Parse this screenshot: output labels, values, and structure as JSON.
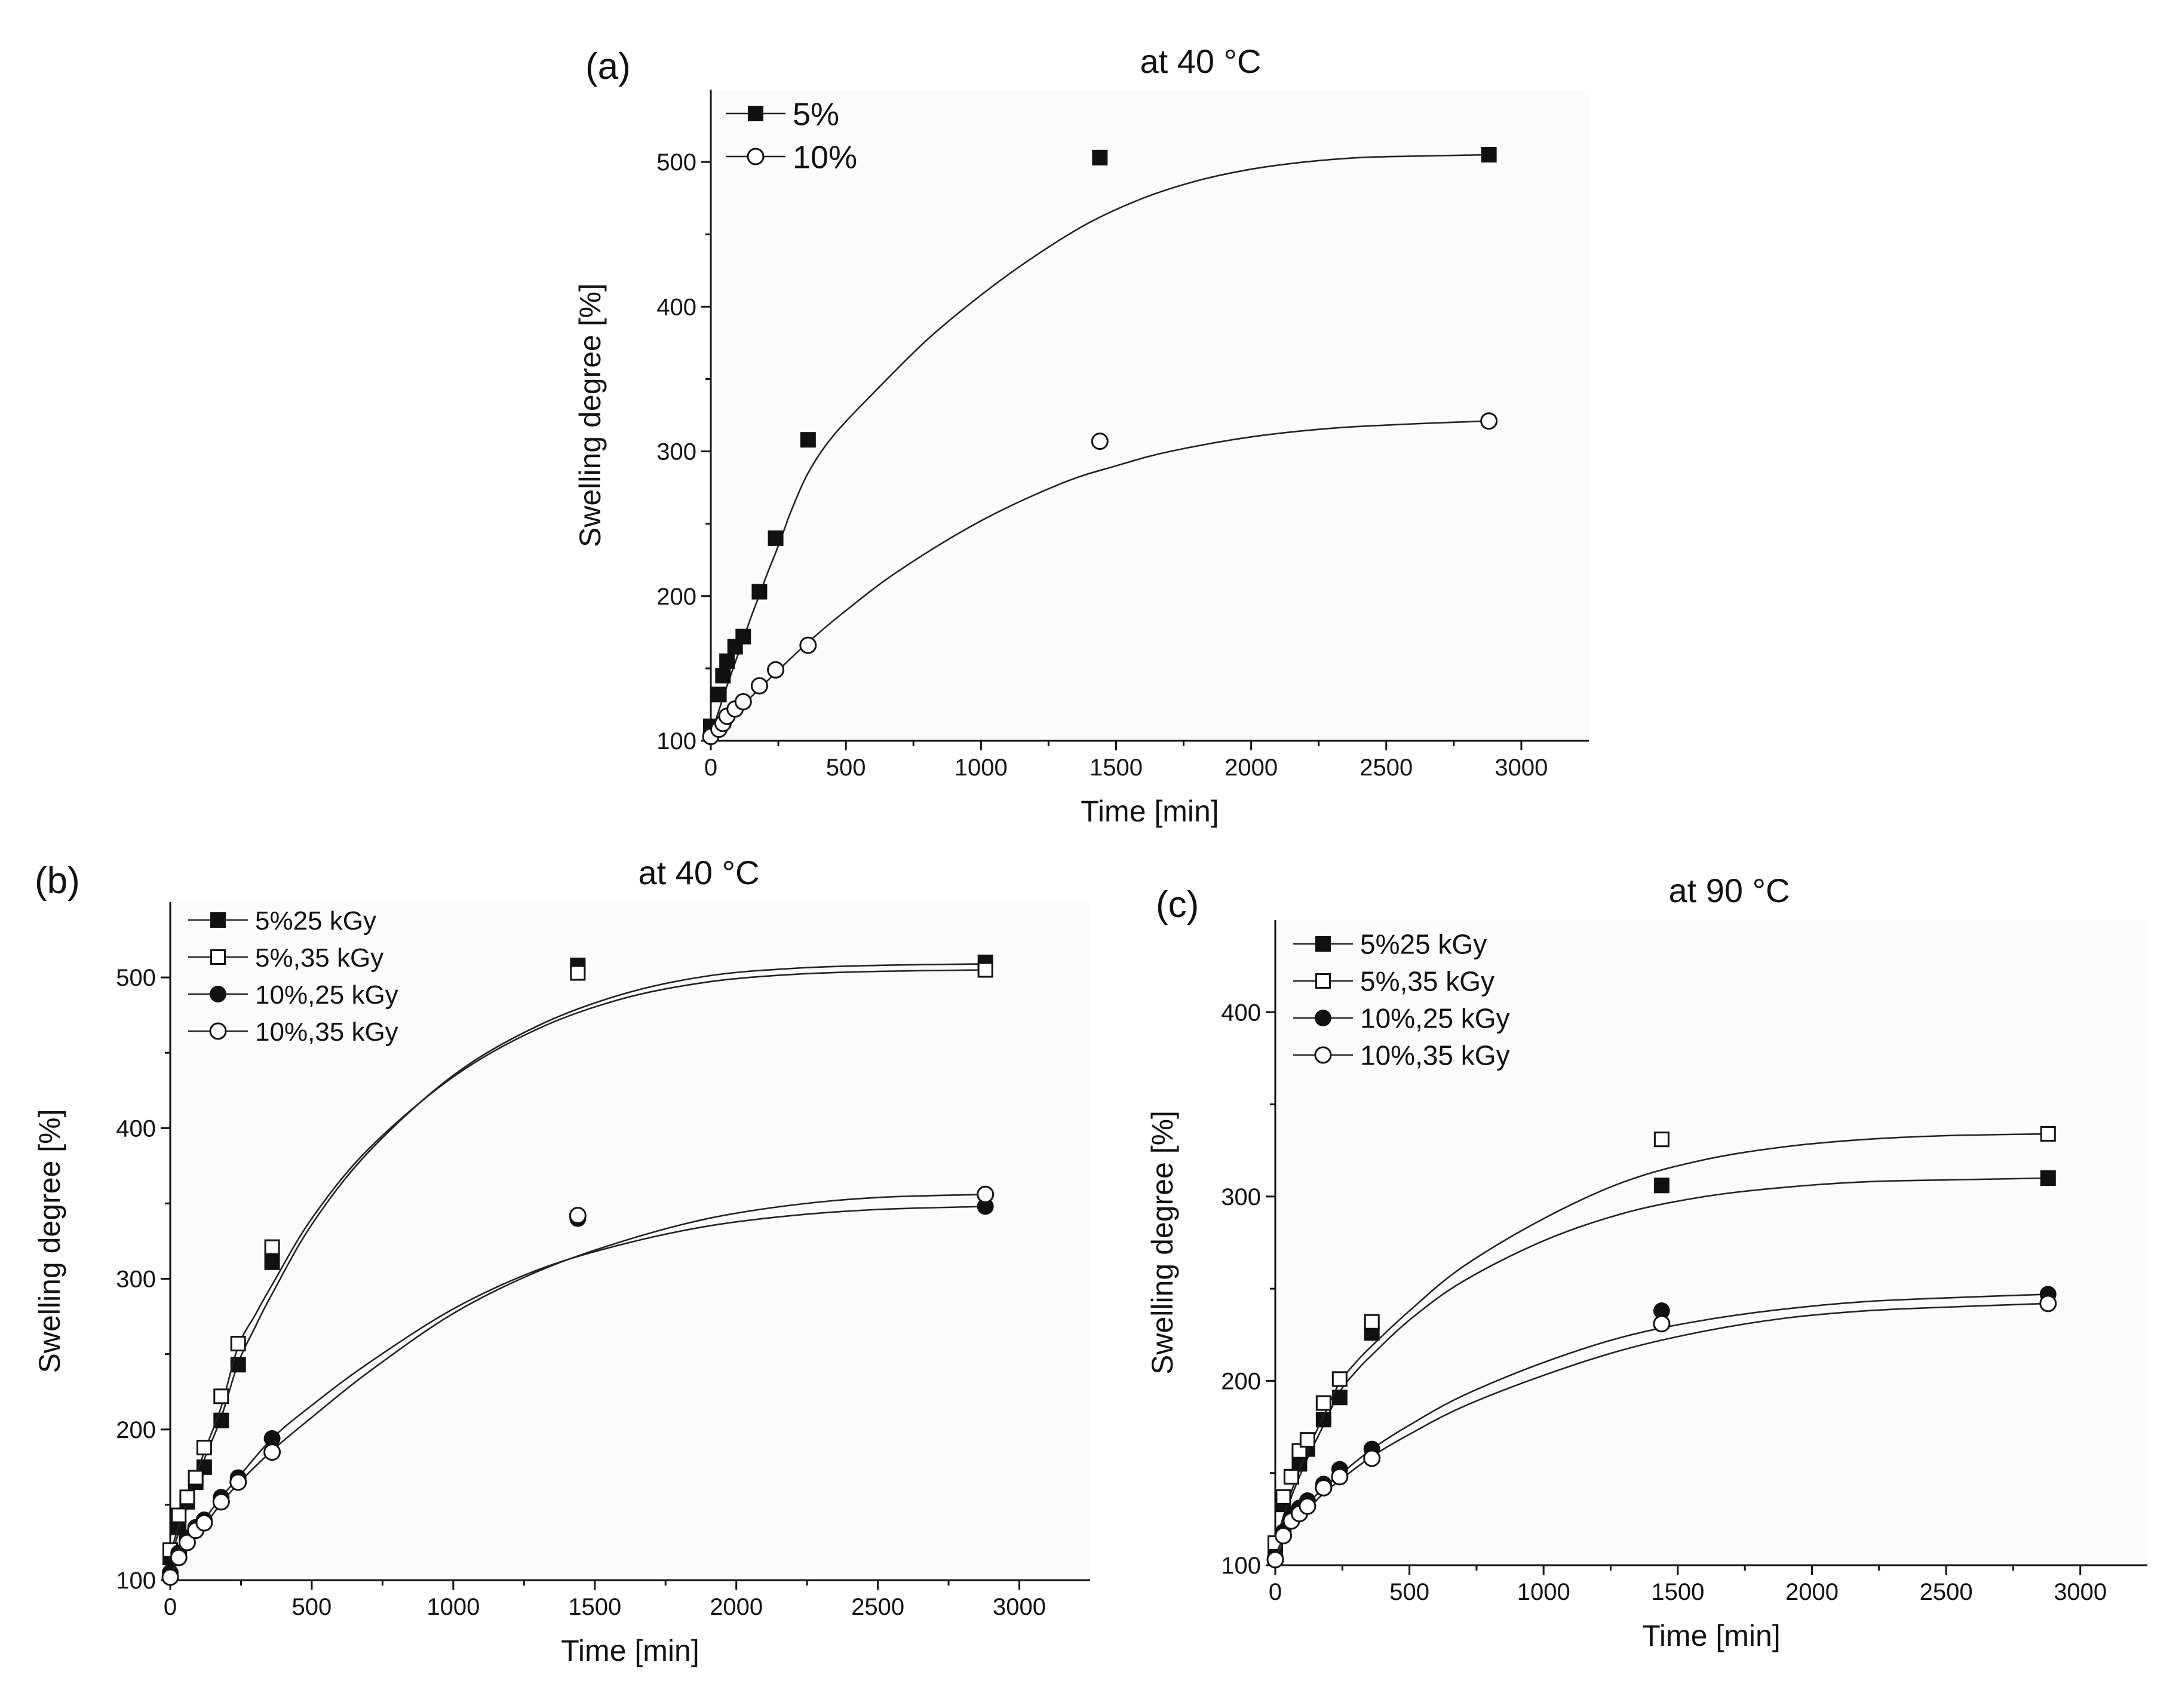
{
  "chart_data": [
    {
      "id": "a",
      "type": "scatter",
      "panel_label": "(a)",
      "title": "at 40 °C",
      "xlabel": "Time [min]",
      "ylabel": "Swelling degree [%]",
      "xlim": [
        0,
        3250
      ],
      "ylim": [
        100,
        550
      ],
      "xticks": [
        0,
        500,
        1000,
        1500,
        2000,
        2500,
        3000
      ],
      "yticks": [
        100,
        200,
        300,
        400,
        500
      ],
      "legend_position": "top-left",
      "series": [
        {
          "name": "5%",
          "marker": "filled-square",
          "x": [
            0,
            30,
            45,
            60,
            90,
            120,
            180,
            240,
            360,
            1440,
            2880
          ],
          "y": [
            110,
            132,
            145,
            155,
            165,
            172,
            203,
            240,
            308,
            503,
            505
          ],
          "fit_x": [
            0,
            30,
            60,
            90,
            120,
            150,
            180,
            210,
            240,
            270,
            300,
            360,
            450,
            600,
            800,
            1000,
            1200,
            1400,
            1600,
            1800,
            2000,
            2200,
            2400,
            2600,
            2880
          ],
          "fit_y": [
            104,
            121,
            138,
            154,
            170,
            186,
            201,
            216,
            230,
            245,
            260,
            285,
            310,
            340,
            377,
            408,
            435,
            458,
            475,
            487,
            495,
            500,
            503,
            504,
            505
          ]
        },
        {
          "name": "10%",
          "marker": "open-circle",
          "x": [
            0,
            30,
            45,
            60,
            90,
            120,
            180,
            240,
            360,
            1440,
            2880
          ],
          "y": [
            103,
            108,
            112,
            117,
            122,
            127,
            138,
            149,
            166,
            307,
            321
          ],
          "fit_x": [
            0,
            30,
            60,
            90,
            120,
            180,
            240,
            360,
            500,
            700,
            1000,
            1300,
            1500,
            1700,
            2000,
            2300,
            2600,
            2880
          ],
          "fit_y": [
            103,
            109,
            115,
            120,
            125,
            136,
            147,
            168,
            190,
            218,
            252,
            278,
            290,
            300,
            310,
            316,
            319,
            321
          ]
        }
      ]
    },
    {
      "id": "b",
      "type": "scatter",
      "panel_label": "(b)",
      "title": "at 40 °C",
      "xlabel": "Time [min]",
      "ylabel": "Swelling degree [%]",
      "xlim": [
        0,
        3250
      ],
      "ylim": [
        100,
        550
      ],
      "xticks": [
        0,
        500,
        1000,
        1500,
        2000,
        2500,
        3000
      ],
      "yticks": [
        100,
        200,
        300,
        400,
        500
      ],
      "legend_position": "top-left",
      "series": [
        {
          "name": "5%25 kGy",
          "marker": "filled-square",
          "x": [
            0,
            30,
            60,
            90,
            120,
            180,
            240,
            360,
            1440,
            2880
          ],
          "y": [
            115,
            135,
            152,
            165,
            175,
            206,
            243,
            311,
            508,
            510
          ],
          "fit_x": [
            0,
            60,
            120,
            180,
            240,
            300,
            360,
            500,
            700,
            1000,
            1300,
            1600,
            1900,
            2200,
            2500,
            2880
          ],
          "fit_y": [
            114,
            149,
            180,
            208,
            244,
            268,
            290,
            336,
            384,
            435,
            468,
            489,
            501,
            506,
            508,
            509
          ]
        },
        {
          "name": "5%,35 kGy",
          "marker": "open-square",
          "x": [
            0,
            30,
            60,
            90,
            120,
            180,
            240,
            360,
            1440,
            2880
          ],
          "y": [
            120,
            143,
            155,
            168,
            188,
            222,
            257,
            321,
            503,
            505
          ],
          "fit_x": [
            0,
            60,
            120,
            180,
            240,
            300,
            360,
            500,
            700,
            1000,
            1300,
            1600,
            1900,
            2200,
            2500,
            2880
          ],
          "fit_y": [
            118,
            153,
            185,
            215,
            255,
            276,
            296,
            340,
            386,
            434,
            466,
            486,
            497,
            502,
            504,
            505
          ]
        },
        {
          "name": "10%,25 kGy",
          "marker": "filled-circle",
          "x": [
            0,
            30,
            60,
            90,
            120,
            180,
            240,
            360,
            1440,
            2880
          ],
          "y": [
            105,
            118,
            128,
            135,
            140,
            155,
            168,
            194,
            340,
            348
          ],
          "fit_x": [
            0,
            60,
            120,
            180,
            240,
            360,
            500,
            700,
            1000,
            1300,
            1600,
            1900,
            2200,
            2500,
            2880
          ],
          "fit_y": [
            106,
            125,
            140,
            155,
            168,
            194,
            216,
            244,
            280,
            306,
            323,
            335,
            342,
            346,
            348
          ]
        },
        {
          "name": "10%,35 kGy",
          "marker": "open-circle",
          "x": [
            0,
            30,
            60,
            90,
            120,
            180,
            240,
            360,
            1440,
            2880
          ],
          "y": [
            102,
            115,
            125,
            133,
            138,
            152,
            165,
            185,
            342,
            356
          ],
          "fit_x": [
            0,
            60,
            120,
            180,
            240,
            360,
            500,
            700,
            1000,
            1300,
            1600,
            1900,
            2200,
            2500,
            2880
          ],
          "fit_y": [
            104,
            122,
            136,
            151,
            164,
            186,
            208,
            238,
            277,
            305,
            325,
            340,
            349,
            354,
            356
          ]
        }
      ]
    },
    {
      "id": "c",
      "type": "scatter",
      "panel_label": "(c)",
      "title": "at 90 °C",
      "xlabel": "Time [min]",
      "ylabel": "Swelling degree [%]",
      "xlim": [
        0,
        3250
      ],
      "ylim": [
        100,
        450
      ],
      "xticks": [
        0,
        500,
        1000,
        1500,
        2000,
        2500,
        3000
      ],
      "yticks": [
        100,
        200,
        300,
        400
      ],
      "legend_position": "top-left",
      "series": [
        {
          "name": "5%25 kGy",
          "marker": "filled-square",
          "x": [
            0,
            30,
            60,
            90,
            120,
            180,
            240,
            360,
            1440,
            2880
          ],
          "y": [
            110,
            133,
            148,
            155,
            163,
            179,
            191,
            226,
            306,
            310
          ],
          "fit_x": [
            0,
            60,
            120,
            180,
            240,
            300,
            360,
            500,
            700,
            1000,
            1300,
            1600,
            1900,
            2200,
            2500,
            2880
          ],
          "fit_y": [
            110,
            137,
            158,
            176,
            194,
            205,
            214,
            233,
            254,
            276,
            291,
            300,
            305,
            308,
            309,
            310
          ]
        },
        {
          "name": "5%,35 kGy",
          "marker": "open-square",
          "x": [
            0,
            30,
            60,
            90,
            120,
            180,
            240,
            360,
            1440,
            2880
          ],
          "y": [
            112,
            137,
            148,
            162,
            168,
            188,
            201,
            232,
            331,
            334
          ],
          "fit_x": [
            0,
            60,
            120,
            180,
            240,
            300,
            360,
            500,
            700,
            1000,
            1300,
            1600,
            1900,
            2200,
            2500,
            2880
          ],
          "fit_y": [
            112,
            140,
            162,
            181,
            199,
            210,
            219,
            238,
            262,
            288,
            308,
            320,
            327,
            331,
            333,
            334
          ]
        },
        {
          "name": "10%,25 kGy",
          "marker": "filled-circle",
          "x": [
            0,
            30,
            60,
            90,
            120,
            180,
            240,
            360,
            1440,
            2880
          ],
          "y": [
            104,
            118,
            126,
            131,
            135,
            144,
            152,
            163,
            238,
            247
          ],
          "fit_x": [
            0,
            60,
            120,
            180,
            240,
            360,
            500,
            700,
            1000,
            1300,
            1600,
            1900,
            2200,
            2500,
            2880
          ],
          "fit_y": [
            106,
            122,
            133,
            142,
            149,
            163,
            176,
            192,
            210,
            224,
            233,
            239,
            243,
            245,
            247
          ]
        },
        {
          "name": "10%,35 kGy",
          "marker": "open-circle",
          "x": [
            0,
            30,
            60,
            90,
            120,
            180,
            240,
            360,
            1440,
            2880
          ],
          "y": [
            103,
            116,
            124,
            128,
            132,
            142,
            148,
            158,
            231,
            242
          ],
          "fit_x": [
            0,
            60,
            120,
            180,
            240,
            360,
            500,
            700,
            1000,
            1300,
            1600,
            1900,
            2200,
            2500,
            2880
          ],
          "fit_y": [
            104,
            120,
            130,
            139,
            146,
            159,
            171,
            186,
            203,
            217,
            227,
            234,
            238,
            240,
            242
          ]
        }
      ]
    }
  ]
}
